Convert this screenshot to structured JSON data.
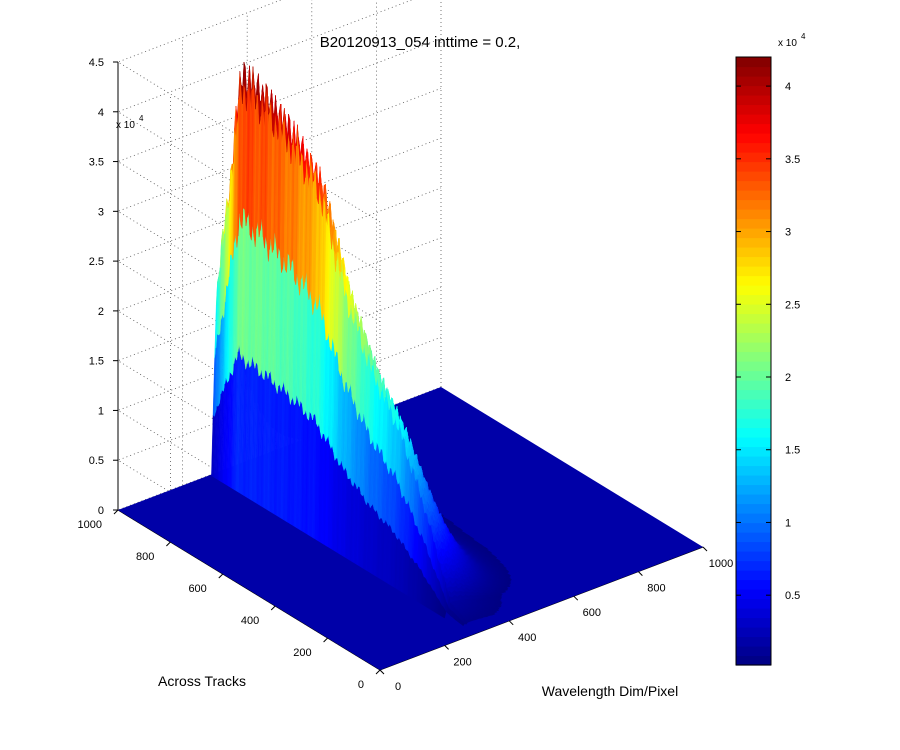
{
  "chart_data": {
    "type": "surface",
    "title": "B20120913_054 inttime = 0.2,",
    "xlabel": "Wavelength Dim/Pixel",
    "ylabel": "Across Tracks",
    "zlabel": "",
    "x_ticks": [
      "0",
      "200",
      "400",
      "600",
      "800",
      "1000"
    ],
    "y_ticks": [
      "0",
      "200",
      "400",
      "600",
      "800",
      "1000"
    ],
    "z_ticks": [
      "0",
      "0.5",
      "1",
      "1.5",
      "2",
      "2.5",
      "3",
      "3.5",
      "4",
      "4.5"
    ],
    "z_multiplier": "x 10",
    "z_exponent": "4",
    "xlim": [
      0,
      1000
    ],
    "ylim": [
      0,
      1000
    ],
    "zlim": [
      0,
      4.5
    ],
    "z_unit_scale": 10000,
    "grid": true,
    "colormap": "jet",
    "colorbar": {
      "ticks": [
        "0.5",
        "1",
        "1.5",
        "2",
        "2.5",
        "3",
        "3.5",
        "4"
      ],
      "multiplier": "x 10",
      "exponent": "4",
      "range": [
        0.02,
        4.2
      ]
    },
    "peaks": [
      {
        "y": 100,
        "z": 0.15
      },
      {
        "y": 200,
        "z": 0.95
      },
      {
        "y": 300,
        "z": 1.6
      },
      {
        "y": 400,
        "z": 2.0
      },
      {
        "y": 500,
        "z": 2.6
      },
      {
        "y": 600,
        "z": 3.5
      },
      {
        "y": 700,
        "z": 3.8
      },
      {
        "y": 800,
        "z": 4.0
      },
      {
        "y": 900,
        "z": 4.1
      }
    ],
    "peak_wavelength_pixel": 300,
    "peak_onset_pixel": 285
  }
}
